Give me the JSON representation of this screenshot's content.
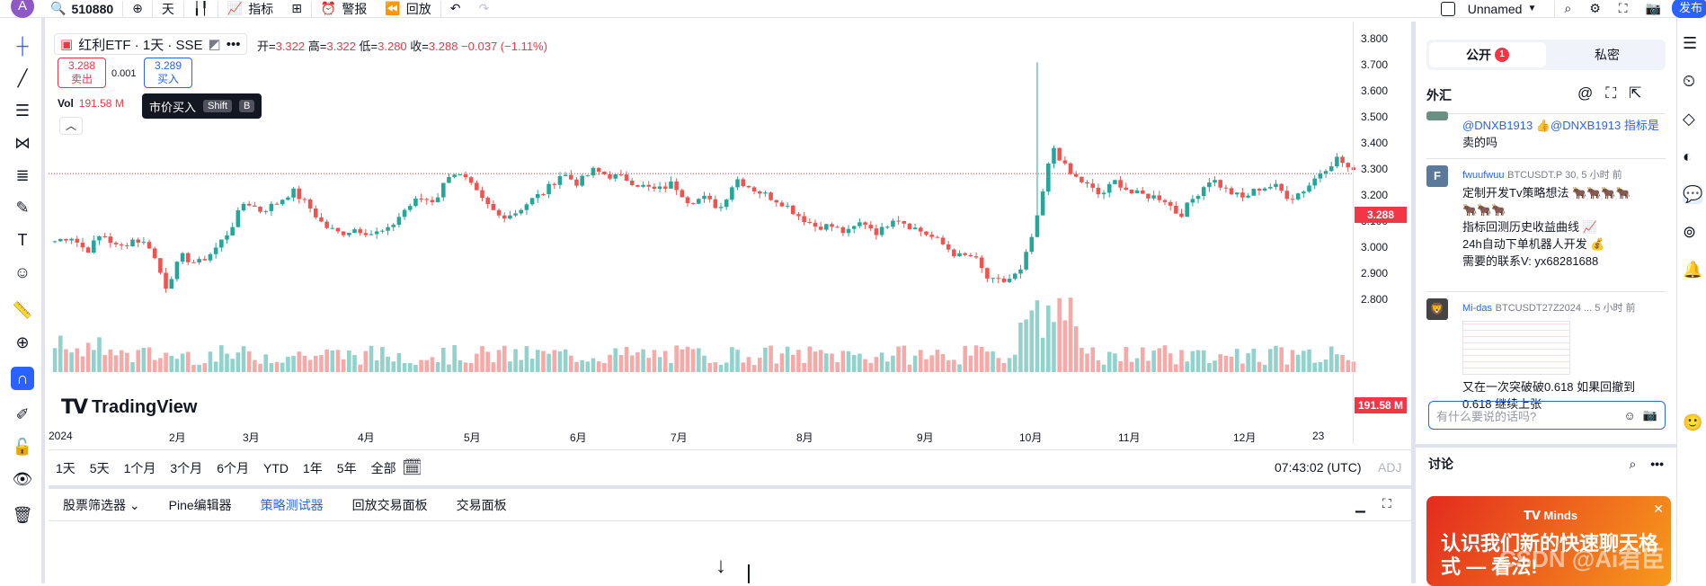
{
  "topbar": {
    "avatar_letter": "A",
    "symbol": "510880",
    "interval": "天",
    "indicators_label": "指标",
    "alerts_label": "警报",
    "replay_label": "回放",
    "layout_name": "Unnamed",
    "publish_label": "发布"
  },
  "legend": {
    "title": "红利ETF · 1天 · SSE",
    "ohlc": {
      "open_label": "开=",
      "open": "3.322",
      "high_label": "高=",
      "high": "3.322",
      "low_label": "低=",
      "low": "3.280",
      "close_label": "收=",
      "close": "3.288",
      "change": "−0.037 (−1.11%)"
    },
    "sell_price": "3.288",
    "sell_label": "卖出",
    "spread": "0.001",
    "buy_price": "3.289",
    "buy_label": "买入",
    "vol_label": "Vol",
    "vol_value": "191.58 M",
    "tooltip": {
      "text": "市价买入",
      "key1": "Shift",
      "key2": "B"
    }
  },
  "price_axis": {
    "labels": [
      "3.800",
      "3.700",
      "3.600",
      "3.500",
      "3.400",
      "3.300",
      "3.200",
      "3.100",
      "3.000",
      "2.900",
      "2.800"
    ],
    "last_price": "3.288",
    "last_volume": "191.58 M"
  },
  "time_axis": {
    "labels": [
      "2024",
      "2月",
      "3月",
      "4月",
      "5月",
      "6月",
      "7月",
      "8月",
      "9月",
      "10月",
      "11月",
      "12月",
      "23"
    ]
  },
  "branding": {
    "logo_text": "TradingView"
  },
  "range_bar": {
    "ranges": [
      "1天",
      "5天",
      "1个月",
      "3个月",
      "6个月",
      "YTD",
      "1年",
      "5年",
      "全部"
    ],
    "clock": "07:43:02 (UTC)",
    "adj": "ADJ"
  },
  "bottom_panel": {
    "tabs": [
      "股票筛选器",
      "Pine编辑器",
      "策略测试器",
      "回放交易面板",
      "交易面板"
    ],
    "active_tab": 2
  },
  "right_panel": {
    "public_label": "公开",
    "public_badge": "1",
    "private_label": "私密",
    "room_title": "外汇",
    "messages": [
      {
        "text1": "@DNXB1913 👍@DNXB1913 指标是",
        "text2": "卖的吗"
      },
      {
        "avatar": "F",
        "user": "fwuufwuu",
        "meta": "BTCUSDT.P 30, 5 小时 前",
        "lines": [
          "定制开发Tv策略想法 🐂🐂🐂🐂",
          "🐂🐂🐂",
          "指标回测历史收益曲线 📈",
          "24h自动下单机器人开发 💰",
          "需要的联系V: yx68281688"
        ]
      },
      {
        "user": "Mi-das",
        "meta": "BTCUSDT27Z2024 ... 5 小时 前",
        "lines": [
          "又在一次突破破0.618 如果回撤到",
          "0.618 继续上张"
        ]
      }
    ],
    "compose_placeholder": "有什么要说的话吗?",
    "discussion_label": "讨论",
    "promo_brand": "Minds",
    "promo_text": "认识我们新的快速聊天格式 — 看法!",
    "watermark": "CSDN @Ai君臣"
  },
  "colors": {
    "up": "#26a69a",
    "down": "#ef5350",
    "accent": "#2962ff",
    "price_tag": "#f23645"
  },
  "chart_data": {
    "type": "candlestick",
    "x_range": [
      "2024-01",
      "2024-12"
    ],
    "ylim": [
      2.75,
      3.82
    ],
    "last_price": 3.288,
    "path": [
      3.02,
      3.04,
      2.98,
      3.05,
      2.99,
      3.03,
      3.0,
      2.84,
      2.96,
      2.93,
      2.98,
      3.06,
      3.18,
      3.14,
      3.17,
      3.22,
      3.16,
      3.08,
      3.05,
      3.07,
      3.05,
      3.06,
      3.14,
      3.19,
      3.18,
      3.3,
      3.26,
      3.18,
      3.12,
      3.13,
      3.18,
      3.22,
      3.29,
      3.25,
      3.3,
      3.28,
      3.27,
      3.24,
      3.22,
      3.25,
      3.18,
      3.19,
      3.15,
      3.27,
      3.23,
      3.2,
      3.17,
      3.12,
      3.08,
      3.08,
      3.05,
      3.1,
      3.05,
      3.12,
      3.08,
      3.05,
      3.01,
      2.96,
      2.96,
      2.86,
      2.86,
      2.9,
      3.1,
      3.4,
      3.29,
      3.25,
      3.2,
      3.26,
      3.21,
      3.2,
      3.19,
      3.12,
      3.2,
      3.27,
      3.22,
      3.19,
      3.23,
      3.24,
      3.19,
      3.23,
      3.3,
      3.35,
      3.29
    ]
  }
}
